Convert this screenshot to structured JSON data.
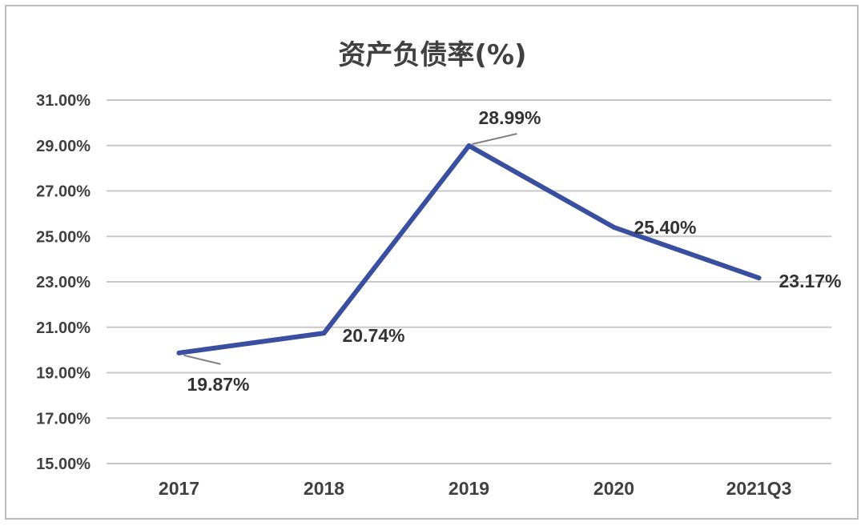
{
  "chart_data": {
    "type": "line",
    "title": "资产负债率(%)",
    "categories": [
      "2017",
      "2018",
      "2019",
      "2020",
      "2021Q3"
    ],
    "series": [
      {
        "values": [
          19.87,
          20.74,
          28.99,
          25.4,
          23.17
        ],
        "data_labels": [
          "19.87%",
          "20.74%",
          "28.99%",
          "25.40%",
          "23.17%"
        ],
        "color": "#3b4fa0"
      }
    ],
    "yticks": [
      "15.00%",
      "17.00%",
      "19.00%",
      "21.00%",
      "23.00%",
      "25.00%",
      "27.00%",
      "29.00%",
      "31.00%"
    ],
    "ylim": [
      15,
      31
    ],
    "grid": true,
    "legend": "none"
  }
}
